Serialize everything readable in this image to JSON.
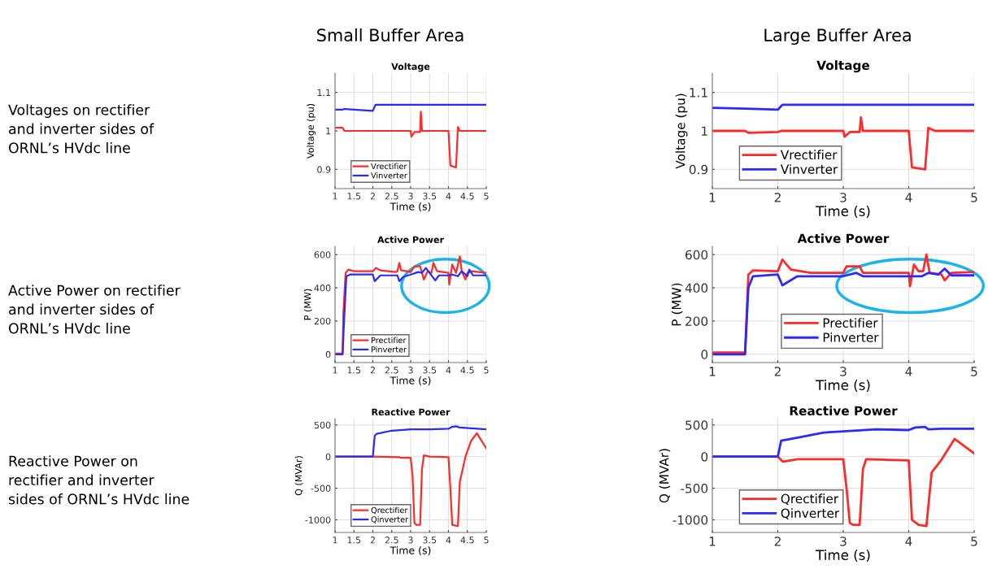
{
  "chart_data": [
    {
      "type": "other",
      "annotations": [
        "Small Buffer Area",
        "Large Buffer Area",
        "Voltages on rectifier\nand inverter sides of\nORNL’s HVdc line",
        "Active Power on rectifier\nand inverter sides of\nORNL’s HVdc line",
        "Reactive Power on\nrectifier and inverter\nsides of ORNL’s HVdc line"
      ]
    },
    {
      "type": "line",
      "title": "Voltage",
      "xlabel": "Time (s)",
      "ylabel": "Voltage (pu)",
      "xlim": [
        1,
        5
      ],
      "ylim": [
        0.85,
        1.15
      ],
      "xticks": [
        1,
        1.5,
        2,
        2.5,
        3,
        3.5,
        4,
        4.5,
        5
      ],
      "yticks": [
        0.9,
        1,
        1.1
      ],
      "grid": true,
      "legend": "bottom left",
      "series": [
        {
          "name": "Vrectifier",
          "color": "#ff2a2a",
          "x": [
            1,
            1.2,
            1.25,
            3.0,
            3.02,
            3.1,
            3.25,
            3.27,
            3.3,
            4.0,
            4.05,
            4.2,
            4.25,
            4.3,
            5
          ],
          "values": [
            1.008,
            1.008,
            1.0,
            1.0,
            0.985,
            0.997,
            0.997,
            1.05,
            1.0,
            1.0,
            0.91,
            0.905,
            1.01,
            1.0,
            1.0
          ]
        },
        {
          "name": "Vinverter",
          "color": "#2a2aff",
          "x": [
            1,
            1.2,
            1.25,
            2.0,
            2.07,
            5
          ],
          "values": [
            1.055,
            1.055,
            1.057,
            1.052,
            1.068,
            1.068
          ]
        }
      ]
    },
    {
      "type": "line",
      "title": "Voltage",
      "xlabel": "Time (s)",
      "ylabel": "Voltage (pu)",
      "xlim": [
        1,
        5
      ],
      "ylim": [
        0.85,
        1.15
      ],
      "xticks": [
        1,
        2,
        3,
        4,
        5
      ],
      "yticks": [
        0.9,
        1,
        1.1
      ],
      "grid": true,
      "legend": "bottom left",
      "series": [
        {
          "name": "Vrectifier",
          "color": "#ff2a2a",
          "x": [
            1,
            1.5,
            1.55,
            2.0,
            2.05,
            3.0,
            3.02,
            3.1,
            3.25,
            3.27,
            3.3,
            4.0,
            4.05,
            4.25,
            4.3,
            4.4,
            5
          ],
          "values": [
            1.0,
            1.0,
            0.995,
            0.997,
            1.0,
            1.0,
            0.985,
            0.997,
            0.997,
            1.035,
            1.0,
            1.0,
            0.905,
            0.9,
            1.008,
            1.0,
            1.0
          ]
        },
        {
          "name": "Vinverter",
          "color": "#2a2aff",
          "x": [
            1,
            1.5,
            2.0,
            2.07,
            5
          ],
          "values": [
            1.06,
            1.058,
            1.055,
            1.068,
            1.068
          ]
        }
      ]
    },
    {
      "type": "line",
      "title": "Active Power",
      "xlabel": "Time (s)",
      "ylabel": "P (MW)",
      "xlim": [
        1,
        5
      ],
      "ylim": [
        -50,
        650
      ],
      "xticks": [
        1,
        1.5,
        2,
        2.5,
        3,
        3.5,
        4,
        4.5,
        5
      ],
      "yticks": [
        0,
        200,
        400,
        600
      ],
      "grid": true,
      "legend": "bottom left",
      "series": [
        {
          "name": "Prectifier",
          "color": "#ff2a2a",
          "x": [
            1,
            1.2,
            1.22,
            1.28,
            1.35,
            1.5,
            2.0,
            2.08,
            2.2,
            2.6,
            2.65,
            2.7,
            2.75,
            2.9,
            3.0,
            3.1,
            3.25,
            3.35,
            3.45,
            3.55,
            3.6,
            3.7,
            4.0,
            4.02,
            4.1,
            4.2,
            4.3,
            4.35,
            4.45,
            4.5,
            4.6,
            5
          ],
          "values": [
            5,
            5,
            250,
            490,
            510,
            500,
            500,
            520,
            505,
            495,
            500,
            550,
            505,
            500,
            495,
            530,
            530,
            450,
            500,
            490,
            550,
            500,
            490,
            420,
            540,
            490,
            590,
            500,
            450,
            490,
            500,
            490
          ]
        },
        {
          "name": "Pinverter",
          "color": "#2a2aff",
          "x": [
            1,
            1.2,
            1.25,
            1.3,
            1.4,
            2.0,
            2.05,
            2.2,
            2.65,
            2.7,
            2.8,
            3.0,
            3.2,
            3.3,
            3.4,
            3.5,
            3.65,
            3.75,
            4.0,
            4.1,
            4.25,
            4.35,
            4.5,
            4.55,
            4.65,
            5
          ],
          "values": [
            0,
            0,
            250,
            470,
            480,
            480,
            440,
            475,
            475,
            440,
            465,
            480,
            495,
            490,
            520,
            490,
            445,
            475,
            475,
            480,
            470,
            500,
            470,
            510,
            475,
            475
          ]
        }
      ]
    },
    {
      "type": "line",
      "title": "Active Power",
      "xlabel": "Time (s)",
      "ylabel": "P (MW)",
      "xlim": [
        1,
        5
      ],
      "ylim": [
        -50,
        650
      ],
      "xticks": [
        1,
        2,
        3,
        4,
        5
      ],
      "yticks": [
        0,
        200,
        400,
        600
      ],
      "grid": true,
      "legend": "bottom left",
      "series": [
        {
          "name": "Prectifier",
          "color": "#ff2a2a",
          "x": [
            1,
            1.5,
            1.55,
            1.62,
            2.0,
            2.07,
            2.2,
            2.5,
            3.0,
            3.05,
            3.25,
            3.3,
            4.0,
            4.02,
            4.08,
            4.15,
            4.22,
            4.27,
            4.32,
            4.5,
            4.55,
            4.65,
            5
          ],
          "values": [
            10,
            10,
            480,
            505,
            500,
            570,
            510,
            490,
            490,
            530,
            530,
            490,
            490,
            410,
            540,
            500,
            500,
            600,
            490,
            480,
            445,
            490,
            495
          ]
        },
        {
          "name": "Pinverter",
          "color": "#2a2aff",
          "x": [
            1,
            1.5,
            1.55,
            1.62,
            2.0,
            2.07,
            2.3,
            3.0,
            3.2,
            3.3,
            4.0,
            4.2,
            4.3,
            4.45,
            4.55,
            4.65,
            5
          ],
          "values": [
            0,
            0,
            400,
            470,
            480,
            415,
            470,
            470,
            490,
            470,
            470,
            470,
            490,
            480,
            515,
            475,
            475
          ]
        }
      ]
    },
    {
      "type": "line",
      "title": "Reactive Power",
      "xlabel": "Time (s)",
      "ylabel": "Q (MVAr)",
      "xlim": [
        1,
        5
      ],
      "ylim": [
        -1200,
        600
      ],
      "xticks": [
        1,
        1.5,
        2,
        2.5,
        3,
        3.5,
        4,
        4.5,
        5
      ],
      "yticks": [
        -1000,
        -500,
        0,
        500
      ],
      "grid": true,
      "legend": "bottom left",
      "series": [
        {
          "name": "Qrectifier",
          "color": "#ff2a2a",
          "x": [
            1,
            2.0,
            2.7,
            2.75,
            3.0,
            3.05,
            3.1,
            3.15,
            3.25,
            3.3,
            3.35,
            3.5,
            4.0,
            4.05,
            4.1,
            4.25,
            4.3,
            4.45,
            4.6,
            4.75,
            5
          ],
          "values": [
            0,
            0,
            -10,
            -20,
            -20,
            -300,
            -1050,
            -1080,
            -1080,
            -200,
            20,
            0,
            -10,
            -500,
            -1080,
            -1100,
            -400,
            0,
            250,
            370,
            130
          ]
        },
        {
          "name": "Qinverter",
          "color": "#2a2aff",
          "x": [
            1,
            2.0,
            2.05,
            2.1,
            2.5,
            3.0,
            3.5,
            4.0,
            4.1,
            4.2,
            4.3,
            5
          ],
          "values": [
            0,
            0,
            330,
            360,
            410,
            430,
            430,
            440,
            470,
            480,
            460,
            430
          ]
        }
      ]
    },
    {
      "type": "line",
      "title": "Reactive Power",
      "xlabel": "Time (s)",
      "ylabel": "Q (MVAr)",
      "xlim": [
        1,
        5
      ],
      "ylim": [
        -1200,
        600
      ],
      "xticks": [
        1,
        2,
        3,
        4,
        5
      ],
      "yticks": [
        -1000,
        -500,
        0,
        500
      ],
      "grid": true,
      "legend": "bottom left",
      "series": [
        {
          "name": "Qrectifier",
          "color": "#ff2a2a",
          "x": [
            1,
            2.0,
            2.08,
            2.3,
            3.0,
            3.05,
            3.1,
            3.15,
            3.25,
            3.3,
            3.35,
            4.0,
            4.05,
            4.15,
            4.27,
            4.35,
            4.5,
            4.7,
            5
          ],
          "values": [
            0,
            0,
            -80,
            -40,
            -40,
            -500,
            -1050,
            -1080,
            -1080,
            -200,
            -40,
            -60,
            -1000,
            -1080,
            -1100,
            -250,
            -50,
            280,
            50
          ]
        },
        {
          "name": "Qinverter",
          "color": "#2a2aff",
          "x": [
            1,
            2.0,
            2.05,
            2.3,
            2.7,
            3.0,
            3.5,
            4.0,
            4.1,
            4.25,
            4.3,
            4.5,
            5
          ],
          "values": [
            0,
            0,
            250,
            300,
            380,
            400,
            430,
            420,
            460,
            470,
            430,
            440,
            440
          ]
        }
      ]
    }
  ]
}
